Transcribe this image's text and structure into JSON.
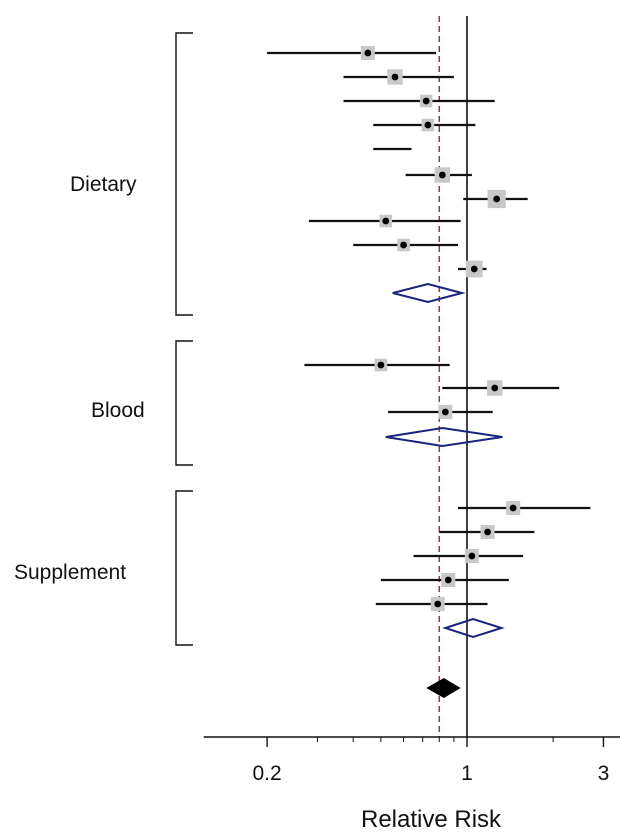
{
  "chart_data": {
    "type": "forest",
    "xlabel": "Relative Risk",
    "x_scale": "log",
    "x_ticks": [
      0.2,
      1,
      3
    ],
    "x_tick_labels": [
      "0.2",
      "1",
      "3"
    ],
    "xlim": [
      0.12,
      3.9
    ],
    "reference_line": 1.0,
    "pooled_line": 0.8,
    "groups": [
      {
        "name": "Dietary",
        "studies": [
          {
            "rr": 0.45,
            "lo": 0.2,
            "hi": 0.78,
            "weight": 1.0
          },
          {
            "rr": 0.56,
            "lo": 0.37,
            "hi": 0.9,
            "weight": 1.1
          },
          {
            "rr": 0.72,
            "lo": 0.37,
            "hi": 1.25,
            "weight": 0.9
          },
          {
            "rr": 0.73,
            "lo": 0.47,
            "hi": 1.07,
            "weight": 0.9
          },
          {
            "rr": null,
            "lo": 0.47,
            "hi": 0.64,
            "weight": 0
          },
          {
            "rr": 0.82,
            "lo": 0.61,
            "hi": 1.04,
            "weight": 1.1
          },
          {
            "rr": 1.27,
            "lo": 0.97,
            "hi": 1.63,
            "weight": 1.3
          },
          {
            "rr": 0.52,
            "lo": 0.28,
            "hi": 0.95,
            "weight": 0.9
          },
          {
            "rr": 0.6,
            "lo": 0.4,
            "hi": 0.93,
            "weight": 0.9
          },
          {
            "rr": 1.06,
            "lo": 0.93,
            "hi": 1.17,
            "weight": 1.2
          }
        ],
        "pooled": {
          "rr": 0.73,
          "lo": 0.55,
          "hi": 0.96
        }
      },
      {
        "name": "Blood",
        "studies": [
          {
            "rr": 0.5,
            "lo": 0.27,
            "hi": 0.87,
            "weight": 0.9
          },
          {
            "rr": 1.25,
            "lo": 0.82,
            "hi": 2.1,
            "weight": 1.1
          },
          {
            "rr": 0.84,
            "lo": 0.53,
            "hi": 1.23,
            "weight": 1.0
          }
        ],
        "pooled": {
          "rr": 0.82,
          "lo": 0.52,
          "hi": 1.33
        }
      },
      {
        "name": "Supplement",
        "studies": [
          {
            "rr": 1.45,
            "lo": 0.93,
            "hi": 2.7,
            "weight": 1.0
          },
          {
            "rr": 1.18,
            "lo": 0.8,
            "hi": 1.72,
            "weight": 1.0
          },
          {
            "rr": 1.04,
            "lo": 0.65,
            "hi": 1.57,
            "weight": 1.0
          },
          {
            "rr": 0.86,
            "lo": 0.5,
            "hi": 1.4,
            "weight": 1.0
          },
          {
            "rr": 0.79,
            "lo": 0.48,
            "hi": 1.18,
            "weight": 1.0
          }
        ],
        "pooled": {
          "rr": 1.05,
          "lo": 0.84,
          "hi": 1.32
        }
      }
    ],
    "overall": {
      "rr": 0.83,
      "lo": 0.72,
      "hi": 0.95
    },
    "colors": {
      "ci_line": "#111111",
      "weight_box": "#c8c8c8",
      "point": "#000000",
      "subgroup_diamond": "#1a237e",
      "overall_diamond": "#000000",
      "pooled_line": "#8b3a4a",
      "axis": "#111111"
    }
  }
}
